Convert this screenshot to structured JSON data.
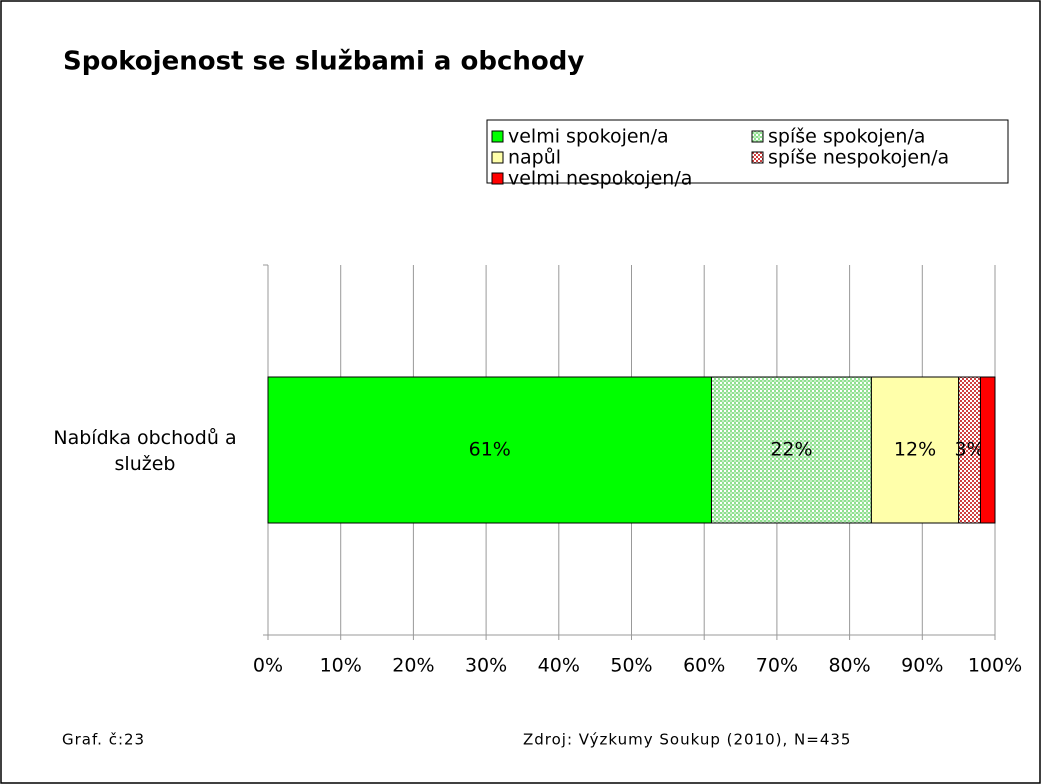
{
  "chart_data": {
    "type": "stacked_barh",
    "title": "Spokojenost se službami a obchody",
    "categories": [
      "Nabídka obchodů a služeb"
    ],
    "series": [
      {
        "name": "velmi spokojen/a",
        "color": "#00ff00",
        "values": [
          61
        ],
        "value_labels": [
          "61%"
        ]
      },
      {
        "name": "spíše spokojen/a",
        "color": "#8fe08f",
        "pattern": "dots",
        "values": [
          22
        ],
        "value_labels": [
          "22%"
        ]
      },
      {
        "name": "napůl",
        "color": "#ffffaa",
        "values": [
          12
        ],
        "value_labels": [
          "12%"
        ]
      },
      {
        "name": "spíše nespokojen/a",
        "color": "#d04040",
        "pattern": "checker",
        "values": [
          3
        ],
        "value_labels": [
          "3%"
        ]
      },
      {
        "name": "velmi nespokojen/a",
        "color": "#ff0000",
        "values": [
          2
        ]
      }
    ],
    "xlim": [
      0,
      100
    ],
    "xticks": [
      {
        "value": 0,
        "label": "0%"
      },
      {
        "value": 10,
        "label": "10%"
      },
      {
        "value": 20,
        "label": "20%"
      },
      {
        "value": 30,
        "label": "30%"
      },
      {
        "value": 40,
        "label": "40%"
      },
      {
        "value": 50,
        "label": "50%"
      },
      {
        "value": 60,
        "label": "60%"
      },
      {
        "value": 70,
        "label": "70%"
      },
      {
        "value": 80,
        "label": "80%"
      },
      {
        "value": 90,
        "label": "90%"
      },
      {
        "value": 100,
        "label": "100%"
      }
    ],
    "grid": true,
    "legend": "top-right",
    "figure_label": "Graf. č:23",
    "source": "Zdroj: Výzkumy Soukup (2010), N=435"
  }
}
